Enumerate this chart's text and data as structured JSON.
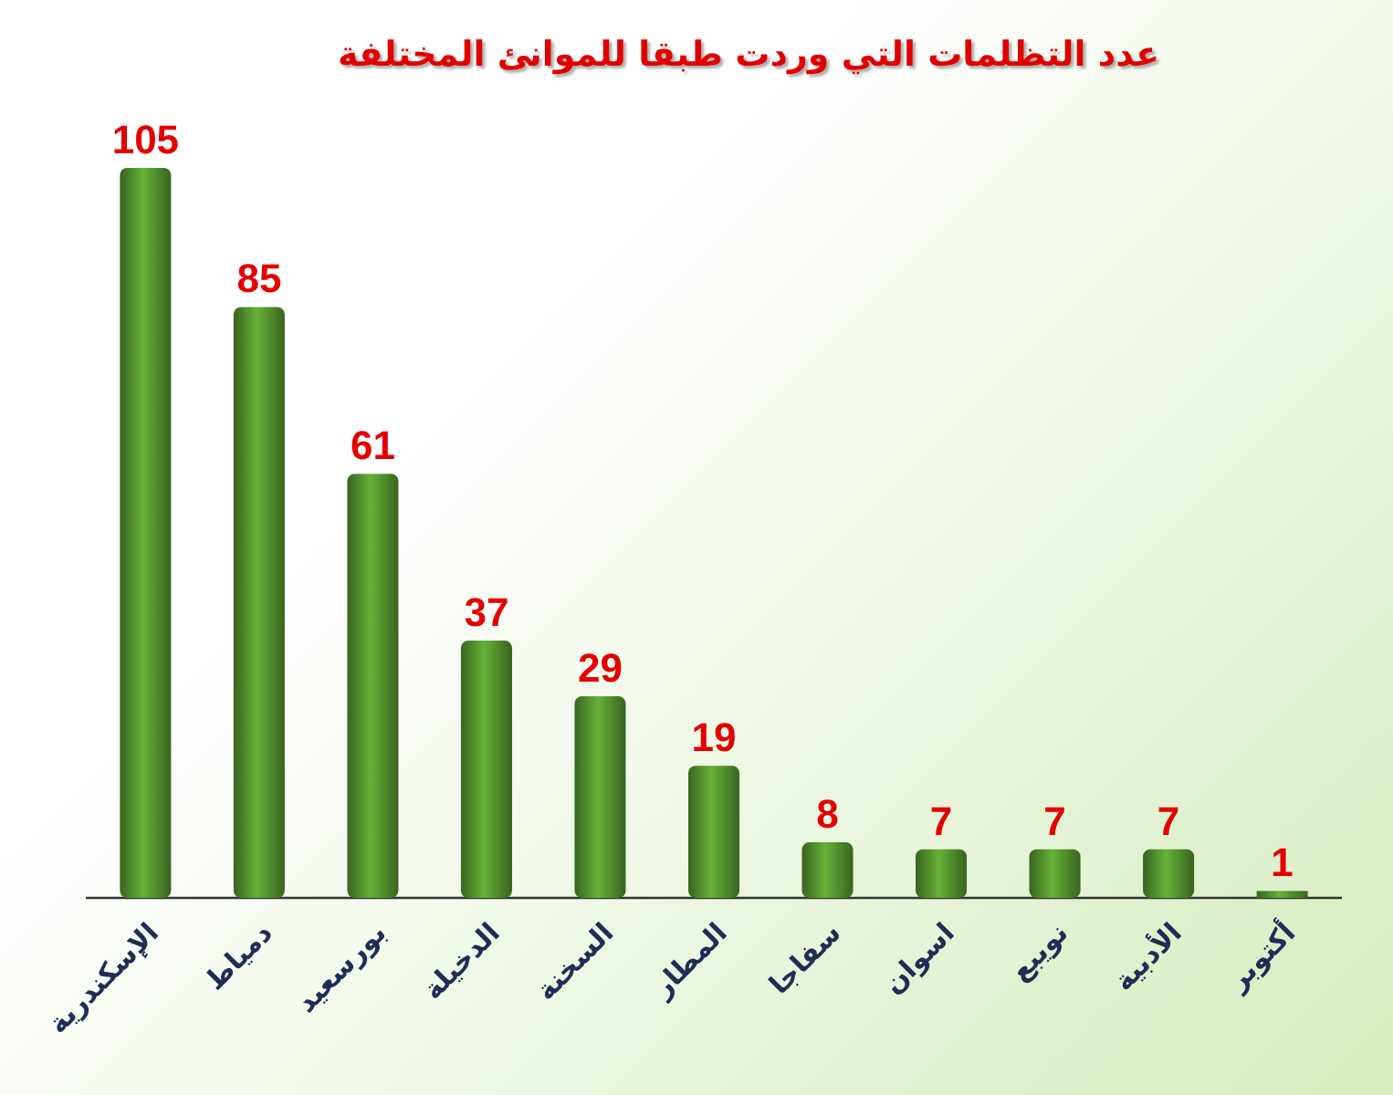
{
  "chart_data": {
    "type": "bar",
    "title": "عدد التظلمات التي وردت طبقا للموانئ المختلفة",
    "categories": [
      "الإسكندرية",
      "دمياط",
      "بورسعيد",
      "الدخيلة",
      "السخنة",
      "المطار",
      "سفاجا",
      "اسوان",
      "نويبع",
      "الأدبية",
      "أكتوبر"
    ],
    "values": [
      105,
      85,
      61,
      37,
      29,
      19,
      8,
      7,
      7,
      7,
      1
    ],
    "color": "#4f8a2b",
    "data_labels": true
  }
}
